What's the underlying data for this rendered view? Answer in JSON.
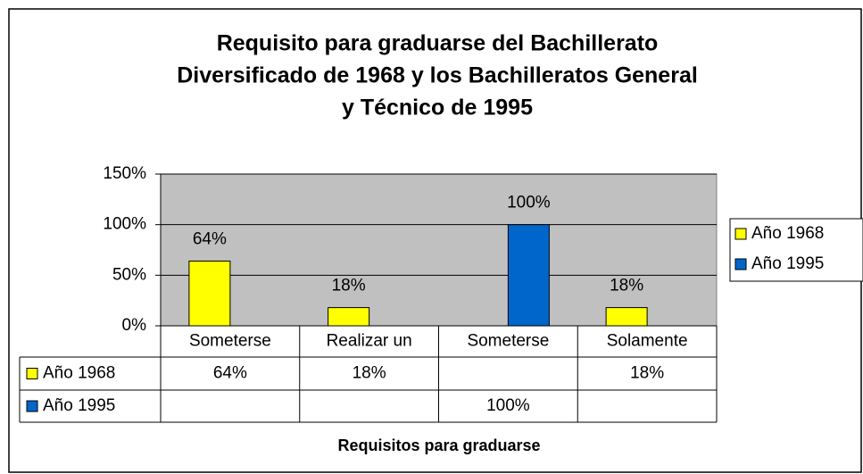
{
  "chart_data": {
    "type": "bar",
    "title": [
      "Requisito para graduarse del Bachillerato",
      "Diversificado de 1968 y los Bachilleratos General",
      "y Técnico de 1995"
    ],
    "x_label": "Requisitos para graduarse",
    "categories": [
      "Someterse",
      "Realizar un",
      "Someterse",
      "Solamente"
    ],
    "series": [
      {
        "name": "Año 1968",
        "color": "#ffff00",
        "values": [
          64,
          18,
          null,
          18
        ],
        "value_labels": [
          "64%",
          "18%",
          null,
          "18%"
        ]
      },
      {
        "name": "Año 1995",
        "color": "#0066cc",
        "values": [
          null,
          null,
          100,
          null
        ],
        "value_labels": [
          null,
          null,
          "100%",
          null
        ]
      }
    ],
    "ylim": [
      0,
      150
    ],
    "yticks": [
      {
        "value": 0,
        "label": "0%"
      },
      {
        "value": 50,
        "label": "50%"
      },
      {
        "value": 100,
        "label": "100%"
      },
      {
        "value": 150,
        "label": "150%"
      }
    ],
    "grid": true,
    "legend": "right",
    "data_table": true
  }
}
